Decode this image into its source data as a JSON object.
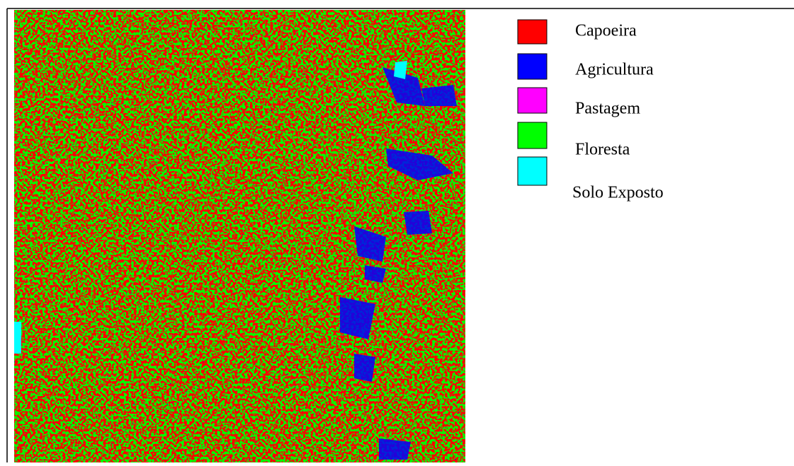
{
  "legend": {
    "items": [
      {
        "label": "Capoeira",
        "color": "#ff0000"
      },
      {
        "label": "Agricultura",
        "color": "#0000ff"
      },
      {
        "label": "Pastagem",
        "color": "#ff00ff"
      },
      {
        "label": "Floresta",
        "color": "#00ff00"
      },
      {
        "label": "Solo Exposto",
        "color": "#00ffff"
      }
    ]
  }
}
